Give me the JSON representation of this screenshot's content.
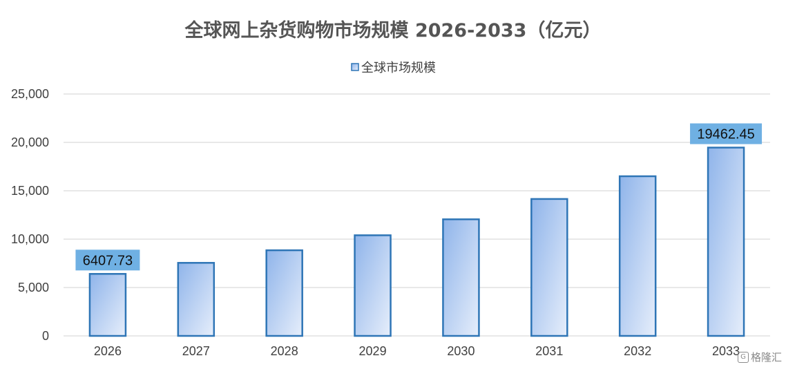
{
  "chart_data": {
    "type": "bar",
    "title": "全球网上杂货购物市场规模 2026-2033（亿元）",
    "legend": {
      "label": "全球市场规模",
      "position": "top-center"
    },
    "series": [
      {
        "name": "全球市场规模",
        "values": [
          6407.73,
          7550,
          8850,
          10400,
          12050,
          14150,
          16500,
          19462.45
        ]
      }
    ],
    "categories": [
      "2026",
      "2027",
      "2028",
      "2029",
      "2030",
      "2031",
      "2032",
      "2033"
    ],
    "ylim": [
      0,
      25000
    ],
    "yticks": [
      0,
      5000,
      10000,
      15000,
      20000,
      25000
    ],
    "ytick_labels": [
      "0",
      "5,000",
      "10,000",
      "15,000",
      "20,000",
      "25,000"
    ],
    "data_labels": [
      {
        "index": 0,
        "text": "6407.73"
      },
      {
        "index": 7,
        "text": "19462.45"
      }
    ],
    "grid": true,
    "colors": {
      "bar_border": "#2e75b6",
      "bar_fill_dark": "#8fb4ea",
      "bar_fill_light": "#e6eefb",
      "label_bg": "#6fb0e3",
      "gridline": "#d9d9d9"
    }
  },
  "watermark": {
    "text": "格隆汇",
    "icon": "glh-logo-icon"
  }
}
